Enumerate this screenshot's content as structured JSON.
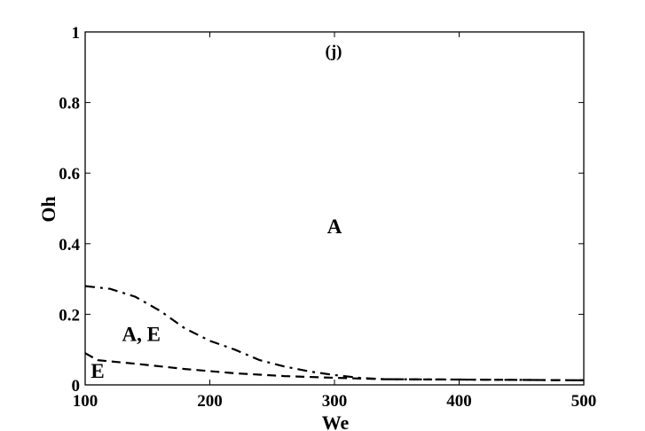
{
  "chart_data": {
    "type": "line",
    "title": "",
    "panel_label": "(j)",
    "xlabel": "We",
    "ylabel": "Oh",
    "xlim": [
      100,
      500
    ],
    "ylim": [
      0,
      1
    ],
    "xticks": [
      100,
      200,
      300,
      400,
      500
    ],
    "yticks": [
      0,
      0.2,
      0.4,
      0.6,
      0.8,
      1
    ],
    "grid": false,
    "legend": "none",
    "region_labels": [
      {
        "text": "A",
        "x": 300,
        "y": 0.43
      },
      {
        "text": "A, E",
        "x": 145,
        "y": 0.125
      },
      {
        "text": "E",
        "x": 110,
        "y": 0.02
      }
    ],
    "series": [
      {
        "style": "dash-dot",
        "color": "#000000",
        "x": [
          100,
          120,
          140,
          160,
          180,
          200,
          220,
          240,
          260,
          280,
          300,
          320,
          340,
          400,
          500
        ],
        "y": [
          0.28,
          0.272,
          0.25,
          0.21,
          0.16,
          0.125,
          0.1,
          0.07,
          0.052,
          0.038,
          0.028,
          0.02,
          0.016,
          0.015,
          0.013
        ]
      },
      {
        "style": "dashed",
        "color": "#000000",
        "x": [
          100,
          110,
          140,
          180,
          220,
          260,
          300,
          340,
          400,
          500
        ],
        "y": [
          0.09,
          0.07,
          0.06,
          0.045,
          0.033,
          0.025,
          0.02,
          0.016,
          0.015,
          0.013
        ]
      }
    ]
  }
}
